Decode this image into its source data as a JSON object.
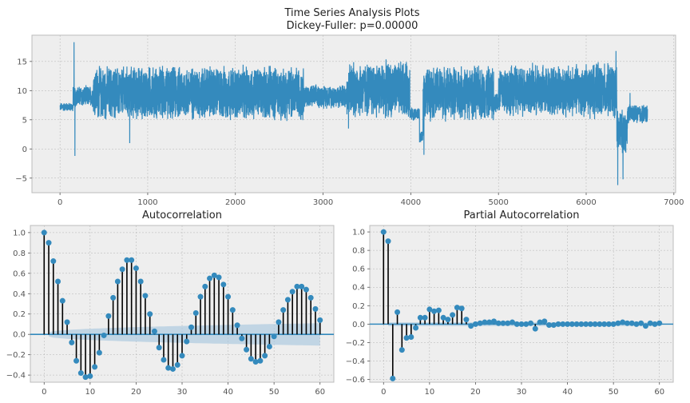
{
  "chart_data": [
    {
      "type": "line",
      "title_lines": [
        "Time Series Analysis Plots",
        "Dickey-Fuller: p=0.00000"
      ],
      "xlabel": "",
      "ylabel": "",
      "xlim": [
        -320,
        7020
      ],
      "ylim": [
        -7.5,
        19.5
      ],
      "xticks": [
        0,
        1000,
        2000,
        3000,
        4000,
        5000,
        6000,
        7000
      ],
      "yticks": [
        -5,
        0,
        5,
        10,
        15
      ],
      "grid": true,
      "series": [
        {
          "color": "#348abd",
          "n_points": 6700,
          "segments": [
            {
              "x": [
                0,
                150
              ],
              "center": 7.2,
              "amplitude": 0.8
            },
            {
              "x": [
                150,
                380
              ],
              "center": 9.0,
              "amplitude": 2.0
            },
            {
              "x": [
                380,
                2780
              ],
              "center": 9.6,
              "amplitude": 5.0
            },
            {
              "x": [
                2780,
                3270
              ],
              "center": 9.0,
              "amplitude": 2.2
            },
            {
              "x": [
                3270,
                3990
              ],
              "center": 10.2,
              "amplitude": 5.2
            },
            {
              "x": [
                3990,
                4100
              ],
              "center": 6.0,
              "amplitude": 1.2
            },
            {
              "x": [
                4100,
                4140
              ],
              "center": 2.0,
              "amplitude": 1.0
            },
            {
              "x": [
                4140,
                4950
              ],
              "center": 9.6,
              "amplitude": 5.0
            },
            {
              "x": [
                4950,
                5000
              ],
              "center": 8.0,
              "amplitude": 2.0
            },
            {
              "x": [
                5000,
                5680
              ],
              "center": 10.0,
              "amplitude": 4.8
            },
            {
              "x": [
                5680,
                6350
              ],
              "center": 10.0,
              "amplitude": 5.0
            },
            {
              "x": [
                6350,
                6470
              ],
              "center": 3.0,
              "amplitude": 4.0
            },
            {
              "x": [
                6470,
                6700
              ],
              "center": 6.0,
              "amplitude": 1.8
            }
          ],
          "spikes": [
            {
              "x": 160,
              "y": 18.3
            },
            {
              "x": 170,
              "y": -1.2
            },
            {
              "x": 795,
              "y": 1.0
            },
            {
              "x": 3290,
              "y": 3.5
            },
            {
              "x": 4150,
              "y": -1.0
            },
            {
              "x": 6340,
              "y": 16.8
            },
            {
              "x": 6360,
              "y": -6.2
            },
            {
              "x": 6420,
              "y": -5.2
            },
            {
              "x": 6500,
              "y": 9.6
            }
          ]
        }
      ]
    },
    {
      "type": "stem",
      "title": "Autocorrelation",
      "xlim": [
        -3,
        63
      ],
      "ylim": [
        -0.47,
        1.07
      ],
      "xticks": [
        0,
        10,
        20,
        30,
        40,
        50,
        60
      ],
      "yticks": [
        -0.4,
        -0.2,
        0.0,
        0.2,
        0.4,
        0.6,
        0.8,
        1.0
      ],
      "grid": true,
      "confidence_band": {
        "lags": [
          1,
          60
        ],
        "start": 0.02,
        "end": 0.11
      },
      "lags": [
        0,
        1,
        2,
        3,
        4,
        5,
        6,
        7,
        8,
        9,
        10,
        11,
        12,
        13,
        14,
        15,
        16,
        17,
        18,
        19,
        20,
        21,
        22,
        23,
        24,
        25,
        26,
        27,
        28,
        29,
        30,
        31,
        32,
        33,
        34,
        35,
        36,
        37,
        38,
        39,
        40,
        41,
        42,
        43,
        44,
        45,
        46,
        47,
        48,
        49,
        50,
        51,
        52,
        53,
        54,
        55,
        56,
        57,
        58,
        59,
        60
      ],
      "values": [
        1.0,
        0.9,
        0.72,
        0.52,
        0.33,
        0.12,
        -0.08,
        -0.26,
        -0.38,
        -0.42,
        -0.41,
        -0.32,
        -0.18,
        -0.01,
        0.18,
        0.36,
        0.52,
        0.64,
        0.73,
        0.73,
        0.65,
        0.52,
        0.38,
        0.2,
        0.03,
        -0.13,
        -0.25,
        -0.33,
        -0.34,
        -0.3,
        -0.21,
        -0.07,
        0.07,
        0.21,
        0.37,
        0.47,
        0.55,
        0.58,
        0.56,
        0.49,
        0.37,
        0.24,
        0.09,
        -0.04,
        -0.15,
        -0.24,
        -0.27,
        -0.26,
        -0.21,
        -0.12,
        -0.02,
        0.12,
        0.24,
        0.34,
        0.42,
        0.47,
        0.47,
        0.44,
        0.36,
        0.25,
        0.14
      ]
    },
    {
      "type": "stem",
      "title": "Partial Autocorrelation",
      "xlim": [
        -3,
        63
      ],
      "ylim": [
        -0.63,
        1.07
      ],
      "xticks": [
        0,
        10,
        20,
        30,
        40,
        50,
        60
      ],
      "yticks": [
        -0.6,
        -0.4,
        -0.2,
        0.0,
        0.2,
        0.4,
        0.6,
        0.8,
        1.0
      ],
      "grid": true,
      "confidence_band": {
        "lags": [
          1,
          60
        ],
        "start": 0.02,
        "end": 0.02
      },
      "lags": [
        0,
        1,
        2,
        3,
        4,
        5,
        6,
        7,
        8,
        9,
        10,
        11,
        12,
        13,
        14,
        15,
        16,
        17,
        18,
        19,
        20,
        21,
        22,
        23,
        24,
        25,
        26,
        27,
        28,
        29,
        30,
        31,
        32,
        33,
        34,
        35,
        36,
        37,
        38,
        39,
        40,
        41,
        42,
        43,
        44,
        45,
        46,
        47,
        48,
        49,
        50,
        51,
        52,
        53,
        54,
        55,
        56,
        57,
        58,
        59,
        60
      ],
      "values": [
        1.0,
        0.9,
        -0.59,
        0.13,
        -0.28,
        -0.15,
        -0.14,
        -0.04,
        0.07,
        0.07,
        0.16,
        0.14,
        0.15,
        0.07,
        0.05,
        0.1,
        0.18,
        0.17,
        0.05,
        -0.02,
        0.0,
        0.01,
        0.02,
        0.02,
        0.03,
        0.01,
        0.01,
        0.01,
        0.02,
        0.0,
        0.0,
        0.0,
        0.01,
        -0.05,
        0.02,
        0.03,
        -0.01,
        -0.01,
        0.0,
        0.0,
        0.0,
        0.0,
        0.0,
        0.0,
        0.0,
        0.0,
        0.0,
        0.0,
        0.0,
        0.0,
        0.0,
        0.01,
        0.02,
        0.01,
        0.01,
        0.0,
        0.01,
        -0.02,
        0.01,
        0.0,
        0.01
      ]
    }
  ]
}
